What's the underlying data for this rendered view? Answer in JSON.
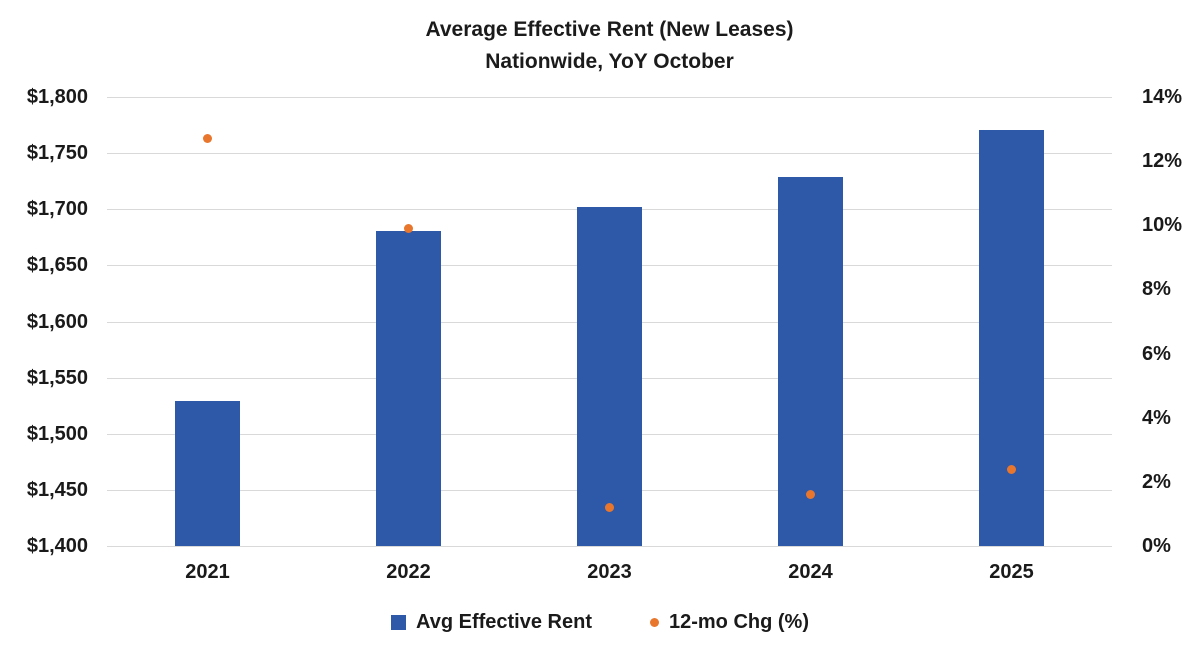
{
  "title": {
    "line1": "Average Effective Rent (New Leases)",
    "line2": "Nationwide, YoY October"
  },
  "chart_data": {
    "type": "bar",
    "subtype": "combo-bar-scatter",
    "title": "Average Effective Rent (New Leases) Nationwide, YoY October",
    "categories": [
      "2021",
      "2022",
      "2023",
      "2024",
      "2025"
    ],
    "series": [
      {
        "name": "Avg Effective Rent",
        "type": "bar",
        "axis": "left",
        "values": [
          1529,
          1681,
          1702,
          1729,
          1771
        ],
        "color": "#2E59A8"
      },
      {
        "name": "12-mo Chg (%)",
        "type": "scatter",
        "axis": "right",
        "values": [
          12.7,
          9.9,
          1.2,
          1.6,
          2.4
        ],
        "color": "#E8762D"
      }
    ],
    "left_axis": {
      "min": 1400,
      "max": 1800,
      "step": 50,
      "tick_labels": [
        "$1,800",
        "$1,750",
        "$1,700",
        "$1,650",
        "$1,600",
        "$1,550",
        "$1,500",
        "$1,450",
        "$1,400"
      ]
    },
    "right_axis": {
      "min": 0,
      "max": 14,
      "step": 2,
      "tick_labels": [
        "14%",
        "12%",
        "10%",
        "8%",
        "6%",
        "4%",
        "2%",
        "0%"
      ]
    },
    "grid": true,
    "gridline_color": "#D9D9D9",
    "legend_position": "bottom"
  },
  "legend": {
    "items": [
      {
        "label": "Avg Effective Rent",
        "marker": "square",
        "color": "#2E59A8"
      },
      {
        "label": "12-mo Chg (%)",
        "marker": "dot",
        "color": "#E8762D"
      }
    ]
  },
  "colors": {
    "bar": "#2E59A8",
    "dot": "#E8762D",
    "grid": "#D9D9D9",
    "text": "#1A1A1A",
    "background": "#FFFFFF"
  }
}
